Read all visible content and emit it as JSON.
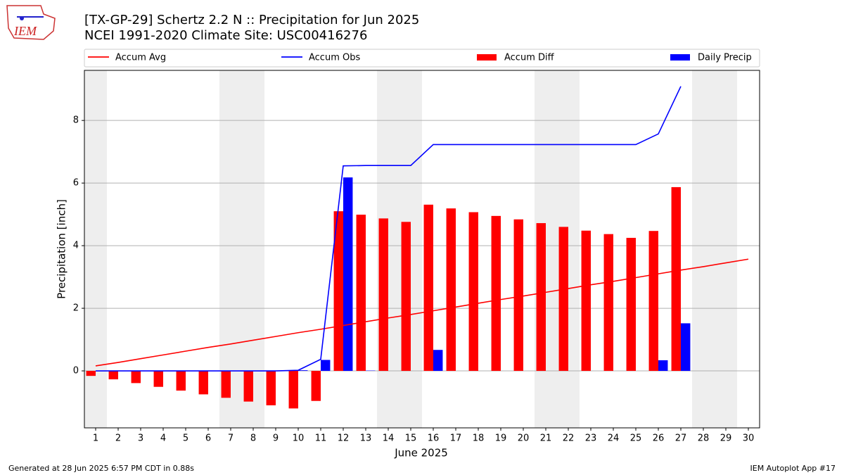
{
  "logo": "IEM",
  "chart_data": {
    "type": "bar-line",
    "title": "[TX-GP-29] Schertz 2.2 N :: Precipitation for Jun 2025",
    "subtitle": "NCEI 1991-2020 Climate Site: USC00416276",
    "xlabel": "June 2025",
    "ylabel": "Precipitation [inch]",
    "footer_left": "Generated at 28 Jun 2025 6:57 PM CDT in 0.88s",
    "footer_right": "IEM Autoplot App #17",
    "x": [
      1,
      2,
      3,
      4,
      5,
      6,
      7,
      8,
      9,
      10,
      11,
      12,
      13,
      14,
      15,
      16,
      17,
      18,
      19,
      20,
      21,
      22,
      23,
      24,
      25,
      26,
      27,
      28,
      29,
      30
    ],
    "xlim": [
      0.5,
      30.5
    ],
    "xticks": [
      1,
      2,
      3,
      4,
      5,
      6,
      7,
      8,
      9,
      10,
      11,
      12,
      13,
      14,
      15,
      16,
      17,
      18,
      19,
      20,
      21,
      22,
      23,
      24,
      25,
      26,
      27,
      28,
      29,
      30
    ],
    "ylim": [
      -1.82,
      9.6
    ],
    "yticks": [
      0,
      2,
      4,
      6,
      8
    ],
    "grid": true,
    "shaded_days": [
      1,
      7,
      8,
      14,
      15,
      21,
      22,
      28,
      29
    ],
    "series": [
      {
        "name": "Accum Avg",
        "kind": "line",
        "color": "#ff0000",
        "values": [
          0.16,
          0.27,
          0.39,
          0.51,
          0.63,
          0.75,
          0.86,
          0.98,
          1.1,
          1.22,
          1.33,
          1.45,
          1.57,
          1.69,
          1.8,
          1.92,
          2.04,
          2.16,
          2.28,
          2.39,
          2.51,
          2.63,
          2.75,
          2.86,
          2.98,
          3.1,
          3.22,
          3.33,
          3.45,
          3.57
        ]
      },
      {
        "name": "Accum Obs",
        "kind": "line",
        "color": "#0000ff",
        "values": [
          0,
          0,
          0,
          0,
          0,
          0,
          0,
          0,
          0,
          0.02,
          0.37,
          6.55,
          6.56,
          6.56,
          6.56,
          7.23,
          7.23,
          7.23,
          7.23,
          7.23,
          7.23,
          7.23,
          7.23,
          7.23,
          7.23,
          7.57,
          9.09,
          null,
          null,
          null
        ]
      },
      {
        "name": "Accum Diff",
        "kind": "bar-left",
        "color": "#ff0000",
        "values": [
          -0.16,
          -0.27,
          -0.39,
          -0.51,
          -0.63,
          -0.75,
          -0.86,
          -0.98,
          -1.1,
          -1.2,
          -0.96,
          5.1,
          4.99,
          4.87,
          4.76,
          5.31,
          5.19,
          5.07,
          4.95,
          4.84,
          4.72,
          4.6,
          4.48,
          4.37,
          4.25,
          4.47,
          5.87,
          null,
          null,
          null
        ]
      },
      {
        "name": "Daily Precip",
        "kind": "bar-right",
        "color": "#0000ff",
        "values": [
          0,
          0,
          0,
          0,
          0,
          0,
          0,
          0,
          0,
          0.02,
          0.35,
          6.18,
          0.01,
          0,
          0,
          0.67,
          0,
          0,
          0,
          0,
          0,
          0,
          0,
          0,
          0,
          0.34,
          1.52,
          null,
          null,
          null
        ]
      }
    ]
  }
}
